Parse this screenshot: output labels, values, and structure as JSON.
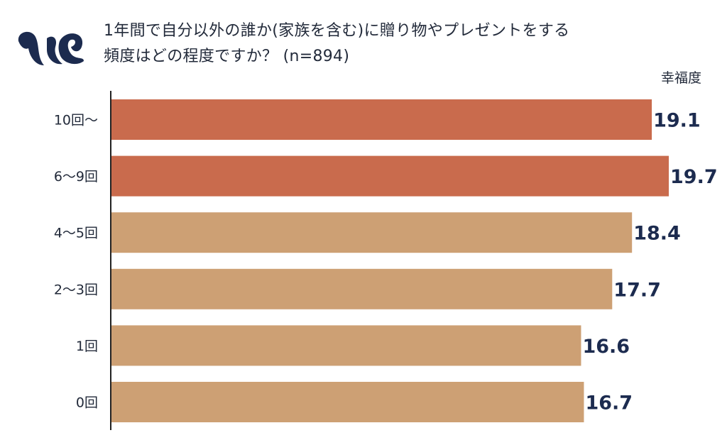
{
  "title": {
    "line1": "1年間で自分以外の誰か(家族を含む)に贈り物やプレゼントをする",
    "line2": "頻度はどの程度ですか？ (n=894)"
  },
  "colors": {
    "highlight": "#c96b4d",
    "normal": "#cda074",
    "value_text": "#1c2b4f",
    "logo": "#1c2b4f",
    "axis": "#222222"
  },
  "chart_data": {
    "type": "bar",
    "orientation": "horizontal",
    "title": "1年間で自分以外の誰か(家族を含む)に贈り物やプレゼントをする頻度はどの程度ですか？ (n=894)",
    "xlabel": "幸福度",
    "ylabel": "",
    "categories": [
      "10回〜",
      "6〜9回",
      "4〜5回",
      "2〜3回",
      "1回",
      "0回"
    ],
    "values": [
      19.1,
      19.7,
      18.4,
      17.7,
      16.6,
      16.7
    ],
    "value_labels": [
      "19.1",
      "19.7",
      "18.4",
      "17.7",
      "16.6",
      "16.7"
    ],
    "highlighted": [
      true,
      true,
      false,
      false,
      false,
      false
    ],
    "xlim": [
      0,
      19.7
    ],
    "grid": false,
    "legend": "none"
  }
}
